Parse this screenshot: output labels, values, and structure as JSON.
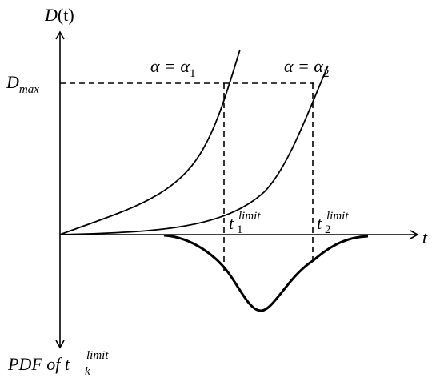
{
  "axes": {
    "y_label": {
      "base": "D",
      "rest": "(t)"
    },
    "x_label": "t",
    "y_max_label": {
      "base": "D",
      "sub": "max"
    },
    "bottom_label": {
      "base": "PDF of t",
      "sub": "k",
      "sup": "limit"
    }
  },
  "curves": [
    {
      "label": {
        "base": "α = α",
        "sub": "1"
      },
      "limit_label": {
        "base": "t",
        "sub": "1",
        "sup": "limit"
      }
    },
    {
      "label": {
        "base": "α = α",
        "sub": "2"
      },
      "limit_label": {
        "base": "t",
        "sub": "2",
        "sup": "limit"
      }
    }
  ]
}
